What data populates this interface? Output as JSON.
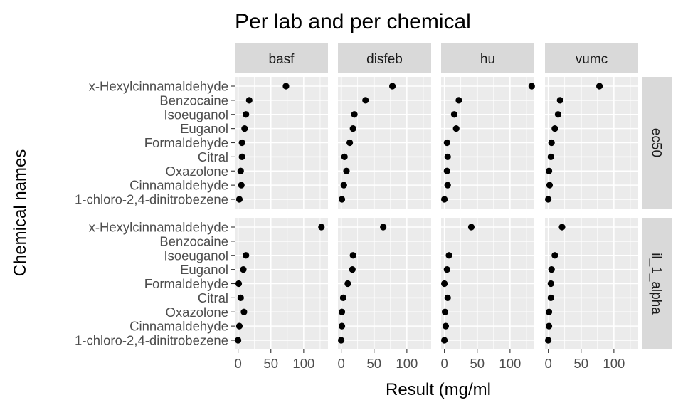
{
  "chart_data": {
    "type": "scatter",
    "title": "Per lab and per chemical",
    "xlabel": "Result (mg/ml",
    "ylabel": "Chemical names",
    "xlim": [
      -5,
      137
    ],
    "x_ticks": [
      0,
      50,
      100
    ],
    "x_tick_labels": [
      "0",
      "50",
      "100"
    ],
    "grid": true,
    "columns": [
      "basf",
      "disfeb",
      "hu",
      "vumc"
    ],
    "rows": [
      "ec50",
      "il_1_alpha"
    ],
    "categories": [
      "x-Hexylcinnamaldehyde",
      "Benzocaine",
      "Isoeuganol",
      "Euganol",
      "Formaldehyde",
      "Citral",
      "Oxazolone",
      "Cinnamaldehyde",
      "1-chloro-2,4-dinitrobezene"
    ],
    "panels": [
      {
        "column": "basf",
        "row": "ec50",
        "values": [
          73,
          17,
          12,
          10,
          6,
          6,
          4,
          5,
          2
        ]
      },
      {
        "column": "disfeb",
        "row": "ec50",
        "values": [
          78,
          37,
          20,
          18,
          13,
          5,
          8,
          4,
          1
        ]
      },
      {
        "column": "hu",
        "row": "ec50",
        "values": [
          133,
          22,
          15,
          18,
          4,
          5,
          4,
          5,
          0
        ]
      },
      {
        "column": "vumc",
        "row": "ec50",
        "values": [
          78,
          18,
          15,
          10,
          5,
          4,
          1,
          2,
          0
        ]
      },
      {
        "column": "basf",
        "row": "il_1_alpha",
        "values": [
          127,
          null,
          12,
          8,
          1,
          4,
          9,
          2,
          0
        ]
      },
      {
        "column": "disfeb",
        "row": "il_1_alpha",
        "values": [
          64,
          null,
          18,
          17,
          10,
          3,
          1,
          1,
          0
        ]
      },
      {
        "column": "hu",
        "row": "il_1_alpha",
        "values": [
          41,
          null,
          7,
          4,
          0,
          5,
          1,
          2,
          0
        ]
      },
      {
        "column": "vumc",
        "row": "il_1_alpha",
        "values": [
          21,
          null,
          10,
          5,
          4,
          4,
          1,
          1,
          0
        ]
      }
    ]
  }
}
